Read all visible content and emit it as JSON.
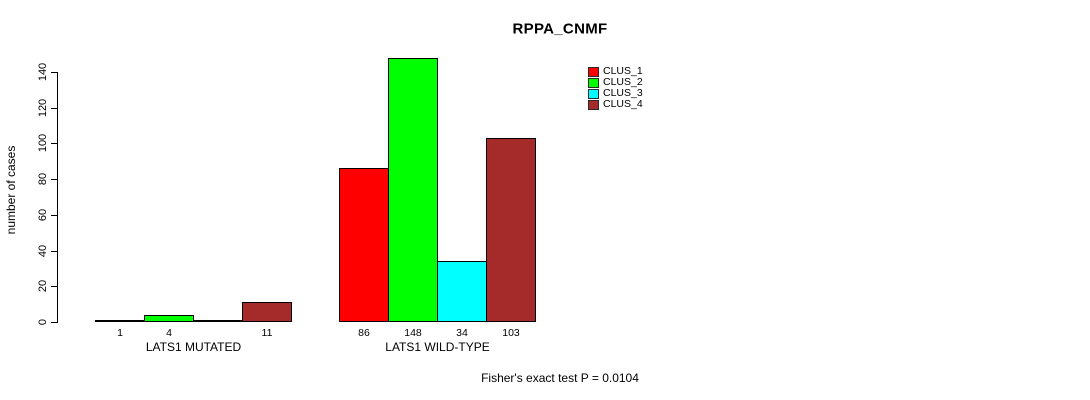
{
  "title": "RPPA_CNMF",
  "y_axis": {
    "label": "number of cases"
  },
  "legend": {
    "items": [
      {
        "label": "CLUS_1",
        "color": "#FF0000"
      },
      {
        "label": "CLUS_2",
        "color": "#00FF00"
      },
      {
        "label": "CLUS_3",
        "color": "#00FFFF"
      },
      {
        "label": "CLUS_4",
        "color": "#A52A2A"
      }
    ]
  },
  "footer": {
    "annotation": "Fisher's exact test P = 0.0104"
  },
  "chart_data": {
    "type": "bar",
    "title": "RPPA_CNMF",
    "xlabel": "",
    "ylabel": "number of cases",
    "ylim": [
      0,
      140
    ],
    "y_ticks": [
      0,
      20,
      40,
      60,
      80,
      100,
      120,
      140
    ],
    "grid": false,
    "legend_position": "top-right",
    "categories": [
      "LATS1 MUTATED",
      "LATS1 WILD-TYPE"
    ],
    "series": [
      {
        "name": "CLUS_1",
        "color": "#FF0000",
        "values": [
          1,
          86
        ]
      },
      {
        "name": "CLUS_2",
        "color": "#00FF00",
        "values": [
          4,
          148
        ]
      },
      {
        "name": "CLUS_3",
        "color": "#00FFFF",
        "values": [
          0,
          34
        ]
      },
      {
        "name": "CLUS_4",
        "color": "#A52A2A",
        "values": [
          11,
          103
        ]
      }
    ],
    "value_labels": [
      [
        "1",
        "4",
        "",
        "11"
      ],
      [
        "86",
        "148",
        "34",
        "103"
      ]
    ],
    "annotation": "Fisher's exact test P = 0.0104"
  }
}
